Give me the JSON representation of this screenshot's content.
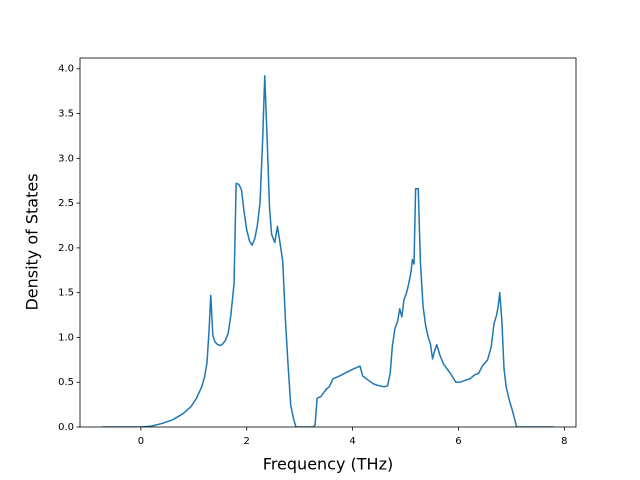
{
  "chart_data": {
    "type": "line",
    "xlabel": "Frequency (THz)",
    "ylabel": "Density of States",
    "x": [
      -0.73,
      0,
      0.2,
      0.4,
      0.6,
      0.8,
      0.95,
      1.05,
      1.15,
      1.2,
      1.25,
      1.29,
      1.32,
      1.36,
      1.4,
      1.45,
      1.5,
      1.55,
      1.6,
      1.65,
      1.7,
      1.76,
      1.8,
      1.85,
      1.9,
      1.95,
      2.0,
      2.05,
      2.1,
      2.15,
      2.2,
      2.25,
      2.3,
      2.34,
      2.38,
      2.43,
      2.47,
      2.53,
      2.58,
      2.63,
      2.68,
      2.73,
      2.78,
      2.83,
      2.88,
      2.93,
      3.25,
      3.29,
      3.33,
      3.4,
      3.45,
      3.5,
      3.56,
      3.63,
      3.72,
      3.82,
      3.92,
      4.02,
      4.14,
      4.19,
      4.3,
      4.4,
      4.5,
      4.6,
      4.66,
      4.71,
      4.75,
      4.8,
      4.85,
      4.89,
      4.93,
      4.97,
      5.02,
      5.06,
      5.1,
      5.13,
      5.16,
      5.19,
      5.24,
      5.28,
      5.33,
      5.38,
      5.43,
      5.47,
      5.51,
      5.55,
      5.59,
      5.65,
      5.72,
      5.82,
      5.9,
      5.95,
      6.03,
      6.12,
      6.22,
      6.3,
      6.38,
      6.45,
      6.55,
      6.62,
      6.67,
      6.72,
      6.75,
      6.78,
      6.82,
      6.86,
      6.9,
      6.96,
      7.02,
      7.1,
      7.8
    ],
    "series": [
      {
        "color": "#1f77b4",
        "values": [
          0,
          0,
          0.01,
          0.04,
          0.08,
          0.15,
          0.23,
          0.32,
          0.45,
          0.55,
          0.72,
          1.1,
          1.47,
          1.02,
          0.95,
          0.92,
          0.91,
          0.93,
          0.97,
          1.05,
          1.25,
          1.6,
          2.72,
          2.71,
          2.65,
          2.4,
          2.2,
          2.08,
          2.03,
          2.1,
          2.25,
          2.5,
          3.2,
          3.92,
          3.3,
          2.45,
          2.15,
          2.06,
          2.24,
          2.05,
          1.85,
          1.2,
          0.7,
          0.25,
          0.1,
          0,
          0,
          0.02,
          0.32,
          0.34,
          0.38,
          0.42,
          0.45,
          0.54,
          0.56,
          0.59,
          0.62,
          0.65,
          0.68,
          0.57,
          0.52,
          0.48,
          0.46,
          0.45,
          0.46,
          0.6,
          0.9,
          1.1,
          1.18,
          1.32,
          1.23,
          1.42,
          1.5,
          1.6,
          1.72,
          1.87,
          1.82,
          2.66,
          2.66,
          1.85,
          1.35,
          1.13,
          1.0,
          0.93,
          0.76,
          0.85,
          0.92,
          0.8,
          0.7,
          0.62,
          0.55,
          0.5,
          0.5,
          0.52,
          0.54,
          0.58,
          0.6,
          0.68,
          0.75,
          0.9,
          1.15,
          1.25,
          1.35,
          1.5,
          1.18,
          0.65,
          0.45,
          0.3,
          0.18,
          0,
          0
        ]
      }
    ],
    "xlim": [
      -1.15,
      8.22
    ],
    "ylim": [
      0,
      4.12
    ],
    "xticks": [
      0,
      2,
      4,
      6,
      8
    ],
    "yticks": [
      {
        "value": 0,
        "label": "0.0"
      },
      {
        "value": 0.5,
        "label": "0.5"
      },
      {
        "value": 1,
        "label": "1.0"
      },
      {
        "value": 1.5,
        "label": "1.5"
      },
      {
        "value": 2,
        "label": "2.0"
      },
      {
        "value": 2.5,
        "label": "2.5"
      },
      {
        "value": 3,
        "label": "3.0"
      },
      {
        "value": 3.5,
        "label": "3.5"
      },
      {
        "value": 4,
        "label": "4.0"
      }
    ]
  }
}
